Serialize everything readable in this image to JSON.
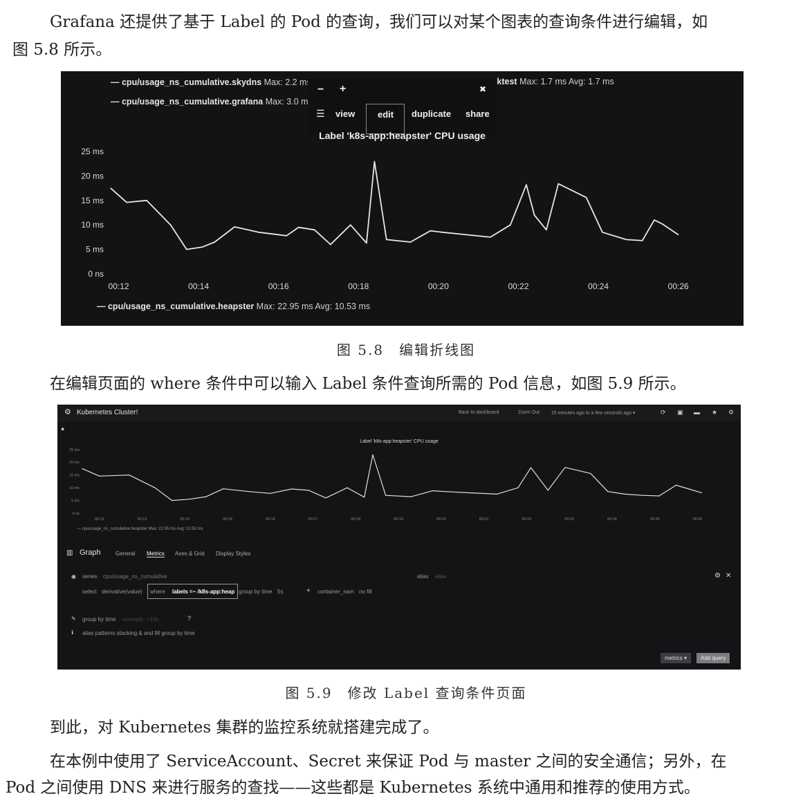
{
  "intro": {
    "line1": "Grafana 还提供了基于 Label 的 Pod 的查询，我们可以对某个图表的查询条件进行编辑，如",
    "line2": "图 5.8 所示。"
  },
  "fig58": {
    "legend_top": [
      {
        "name": "cpu/usage_ns_cumulative.skydns",
        "stat": "Max: 2.2 ms"
      },
      {
        "name": "cpu/usage_ns_cumulative.grafana",
        "stat": "Max: 3.0 ms"
      }
    ],
    "legend_right": {
      "name": "...ktest",
      "stat": "Max: 1.7 ms  Avg: 1.7 ms"
    },
    "menu": {
      "minus": "−",
      "plus": "+",
      "close": "✖",
      "grid": "☰",
      "view": "view",
      "edit": "edit",
      "duplicate": "duplicate",
      "share": "share"
    },
    "caption_text": "图 5.8　编辑折线图",
    "chart_data": {
      "type": "line",
      "title": "Label 'k8s-app:heapster' CPU usage",
      "yticks": [
        "0 ns",
        "5 ms",
        "10 ms",
        "15 ms",
        "20 ms",
        "25 ms"
      ],
      "xticks": [
        "00:12",
        "00:14",
        "00:16",
        "00:18",
        "00:20",
        "00:22",
        "00:24",
        "00:26"
      ],
      "ylim": [
        0,
        25
      ],
      "xlim": [
        11.8,
        26.3
      ],
      "series": [
        {
          "name": "cpu/usage_ns_cumulative.heapster",
          "stats": "Max: 22.95 ms  Avg: 10.53 ms",
          "x": [
            11.8,
            12.2,
            12.7,
            13.3,
            13.7,
            14.1,
            14.4,
            14.9,
            15.5,
            16.2,
            16.5,
            16.9,
            17.3,
            17.8,
            18.2,
            18.4,
            18.7,
            19.3,
            19.8,
            20.1,
            20.7,
            21.3,
            21.8,
            22.2,
            22.4,
            22.7,
            23.0,
            23.7,
            24.1,
            24.7,
            25.1,
            25.4,
            25.6,
            26.0
          ],
          "y": [
            17.5,
            14.6,
            15.0,
            10.0,
            5.0,
            5.5,
            6.5,
            9.6,
            8.5,
            7.8,
            9.5,
            9.0,
            6.0,
            10.0,
            6.3,
            22.95,
            7.0,
            6.5,
            8.8,
            8.5,
            8.0,
            7.5,
            10.0,
            18.2,
            12.0,
            9.0,
            18.4,
            15.6,
            8.5,
            7.0,
            6.8,
            11.0,
            10.2,
            8.0
          ]
        }
      ]
    }
  },
  "between": "在编辑页面的 where 条件中可以输入 Label 条件查询所需的 Pod 信息，如图 5.9 所示。",
  "fig59": {
    "header": {
      "title": "Kubernetes Cluster!",
      "back": "Back to dashboard",
      "zoom": "Zoom Out",
      "range": "15 minutes ago to a few seconds ago ▾"
    },
    "chart_data": {
      "type": "line",
      "title": "Label 'k8s-app:heapster' CPU usage",
      "yticks": [
        "0 ns",
        "5 ms",
        "10 ms",
        "15 ms",
        "20 ms",
        "25 ms"
      ],
      "xticks": [
        "00:12",
        "00:13",
        "00:14",
        "00:15",
        "00:16",
        "00:17",
        "00:18",
        "00:19",
        "00:20",
        "00:21",
        "00:22",
        "00:23",
        "00:24",
        "00:25",
        "00:26"
      ],
      "ylim": [
        0,
        25
      ],
      "xlim": [
        11.6,
        26.3
      ],
      "series": [
        {
          "name": "cpu/usage_ns_cumulative.heapster",
          "stats": "Max: 22.95 ms  Avg: 10.53 ms",
          "x": [
            11.6,
            12.0,
            12.7,
            13.3,
            13.7,
            14.1,
            14.5,
            14.9,
            15.5,
            16.0,
            16.5,
            16.9,
            17.3,
            17.8,
            18.2,
            18.4,
            18.7,
            19.3,
            19.8,
            20.1,
            20.7,
            21.3,
            21.8,
            22.1,
            22.5,
            22.9,
            23.5,
            23.9,
            24.3,
            24.7,
            25.1,
            25.5,
            25.8,
            26.1
          ],
          "y": [
            17.5,
            14.6,
            15.0,
            10.0,
            5.0,
            5.5,
            6.5,
            9.6,
            8.5,
            7.8,
            9.5,
            9.0,
            6.0,
            10.0,
            6.3,
            22.95,
            7.0,
            6.5,
            8.8,
            8.5,
            8.0,
            7.5,
            10.0,
            17.9,
            9.0,
            18.0,
            15.6,
            8.5,
            7.5,
            7.0,
            6.8,
            11.0,
            9.5,
            8.0
          ]
        }
      ]
    },
    "editor": {
      "graph_label": "Graph",
      "tabs": [
        "General",
        "Metrics",
        "Axes & Grid",
        "Display Styles"
      ],
      "series_label": "series",
      "series_value": "cpu/usage_ns_cumulative",
      "alias_label": "alias",
      "alias_value": "alias",
      "select_label": "select",
      "select_value": "derivative(value)",
      "where_label": "where",
      "where_value": "labels =~ /k8s-app:heap",
      "group_by": "group by time",
      "group_value": "5s",
      "container_label": "container_nam",
      "fill_label": "no fill",
      "group_by_time": "group by time",
      "group_placeholder": "example: >10s",
      "info": "alias patterns   stacking & and fill   group by time",
      "metrics_btn": "metrics ▾",
      "add_query_btn": "Add query"
    },
    "caption_text": "图 5.9　修改 Label 查询条件页面"
  },
  "outro": {
    "p1": "到此，对 Kubernetes 集群的监控系统就搭建完成了。",
    "p2a": "在本例中使用了 ServiceAccount、Secret 来保证 Pod 与 master 之间的安全通信；另外，在",
    "p2b": "Pod 之间使用 DNS 来进行服务的查找——这些都是 Kubernetes 系统中通用和推荐的使用方式。"
  }
}
